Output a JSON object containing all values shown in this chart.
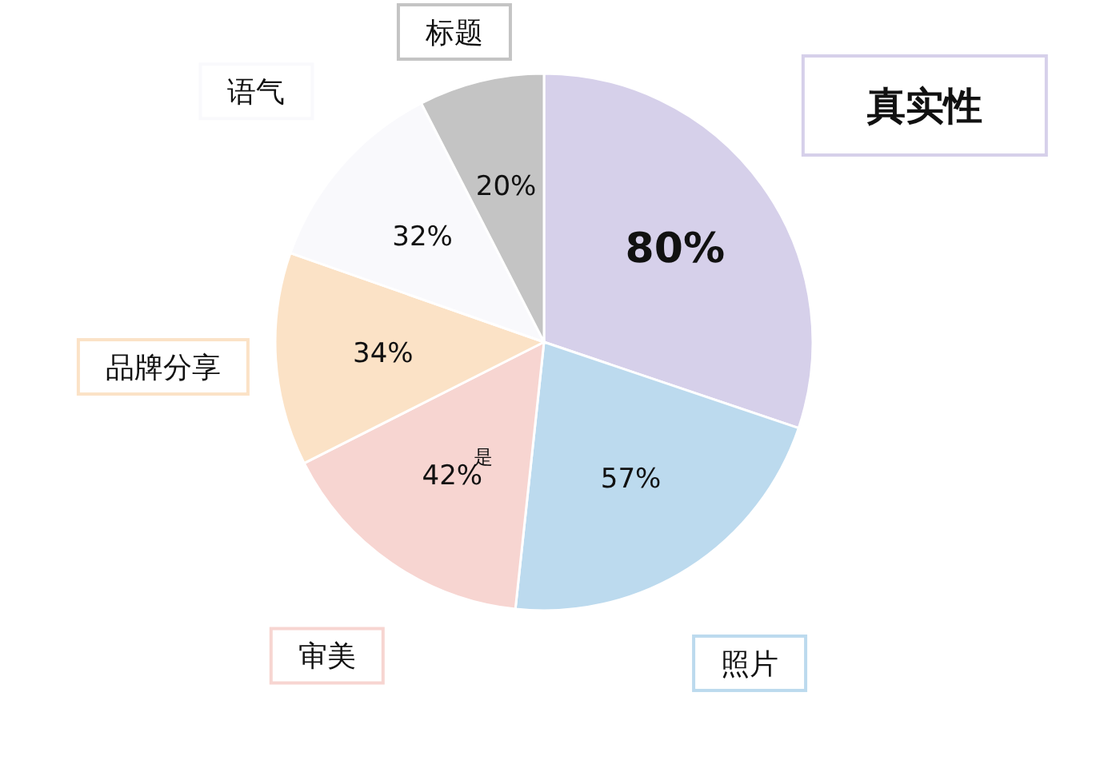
{
  "chart_data": {
    "type": "pie",
    "categories": [
      "真实性",
      "照片",
      "审美",
      "品牌分享",
      "语气",
      "标题"
    ],
    "values": [
      80,
      57,
      42,
      34,
      32,
      20
    ],
    "value_labels": [
      "80%",
      "57%",
      "42%",
      "34%",
      "32%",
      "20%"
    ],
    "colors": [
      "#d6d0ea",
      "#bcdaee",
      "#f7d5d1",
      "#fbe2c6",
      "#f9f9fc",
      "#c4c4c4"
    ],
    "annotations": [
      "是"
    ]
  }
}
